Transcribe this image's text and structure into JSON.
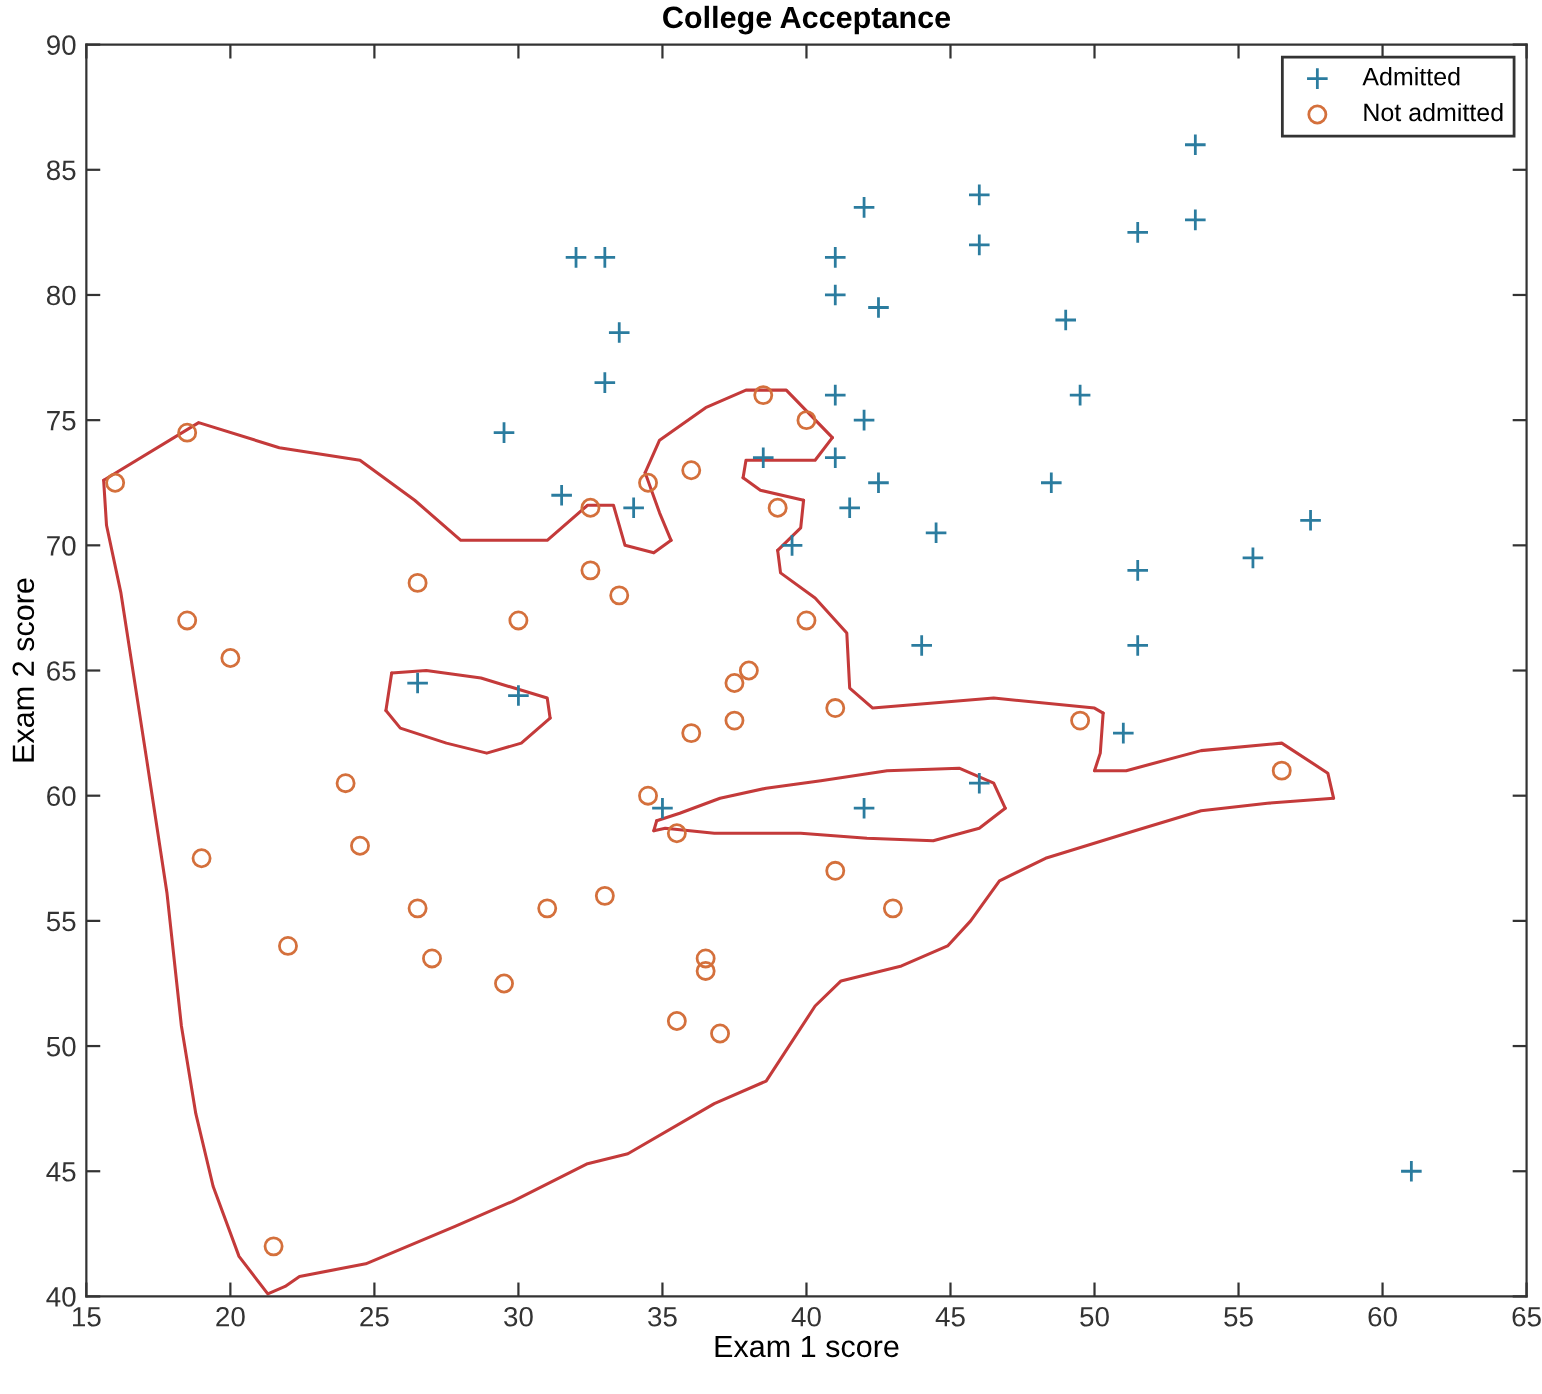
{
  "chart_data": {
    "type": "scatter",
    "title": "College Acceptance",
    "xlabel": "Exam 1 score",
    "ylabel": "Exam 2 score",
    "xlim": [
      15,
      65
    ],
    "ylim": [
      40,
      90
    ],
    "xticks": [
      15,
      20,
      25,
      30,
      35,
      40,
      45,
      50,
      55,
      60,
      65
    ],
    "yticks": [
      40,
      45,
      50,
      55,
      60,
      65,
      70,
      75,
      80,
      85,
      90
    ],
    "legend": "top right",
    "grid": false,
    "line_style": "solid",
    "series": [
      {
        "name": "Admitted",
        "marker": "cross",
        "color": "#2b7c9f",
        "x": [
          29.5,
          31.5,
          32,
          33,
          33.5,
          33,
          34,
          26.5,
          30,
          35,
          38.5,
          39.5,
          41,
          41,
          42,
          42.5,
          41,
          42,
          41,
          42.5,
          41.5,
          44.5,
          46,
          46,
          44,
          42,
          46,
          48.5,
          49,
          49.5,
          51.5,
          53.5,
          53.5,
          51.5,
          51.5,
          51,
          55.5,
          57.5,
          61
        ],
        "values": [
          74.5,
          72,
          81.5,
          81.5,
          78.5,
          76.5,
          71.5,
          64.5,
          64,
          59.5,
          73.5,
          70,
          81.5,
          80,
          83.5,
          79.5,
          76,
          75,
          73.5,
          72.5,
          71.5,
          70.5,
          84,
          82,
          66,
          59.5,
          60.5,
          72.5,
          79,
          76,
          82.5,
          86,
          83,
          69,
          66,
          62.5,
          69.5,
          71,
          45
        ]
      },
      {
        "name": "Not admitted",
        "marker": "circle",
        "color": "#d4703c",
        "x": [
          16,
          18.5,
          18.5,
          20,
          19,
          22,
          21.5,
          24,
          24.5,
          26.5,
          26.5,
          27,
          30,
          29.5,
          31,
          32.5,
          32.5,
          33.5,
          33,
          34.5,
          34.5,
          35.5,
          35.5,
          36,
          36,
          36.5,
          36.5,
          37,
          37.5,
          37.5,
          38,
          38.5,
          39,
          40,
          40,
          41,
          41,
          43,
          49.5,
          56.5
        ],
        "values": [
          72.5,
          74.5,
          67,
          65.5,
          57.5,
          54,
          42,
          60.5,
          58,
          68.5,
          55.5,
          53.5,
          67,
          52.5,
          55.5,
          71.5,
          69,
          68,
          56,
          72.5,
          60,
          58.5,
          51,
          73,
          62.5,
          53.5,
          53,
          50.5,
          64.5,
          63,
          65,
          76,
          71.5,
          75,
          67,
          63.5,
          57,
          55.5,
          63,
          61
        ]
      },
      {
        "type": "line",
        "marker": "none",
        "color": "#c43a3a",
        "x": [
          15.6,
          18.9,
          21.7,
          24.5,
          26.4,
          28.0,
          31.0,
          32.4,
          33.3,
          33.7,
          34.7,
          35.3
        ],
        "values": [
          72.6,
          74.9,
          73.9,
          73.4,
          71.8,
          70.2,
          70.2,
          71.6,
          71.6,
          70.0,
          69.7,
          70.2
        ]
      },
      {
        "type": "line",
        "marker": "none",
        "color": "#c43a3a",
        "x": [
          35.3,
          34.9,
          34.4
        ],
        "values": [
          70.2,
          71.3,
          72.9
        ]
      },
      {
        "type": "line",
        "marker": "none",
        "color": "#c43a3a",
        "x": [
          34.4,
          34.9,
          36.5,
          37.9,
          39.3,
          40.9
        ],
        "values": [
          72.9,
          74.2,
          75.5,
          76.2,
          76.2,
          74.3
        ]
      },
      {
        "type": "line",
        "marker": "none",
        "color": "#c43a3a",
        "x": [
          40.9,
          40.3,
          37.9,
          37.8
        ],
        "values": [
          74.3,
          73.4,
          73.4,
          72.7
        ]
      },
      {
        "type": "line",
        "marker": "none",
        "color": "#c43a3a",
        "x": [
          37.8,
          38.4,
          39.9
        ],
        "values": [
          72.7,
          72.2,
          71.8
        ]
      },
      {
        "type": "line",
        "marker": "none",
        "color": "#c43a3a",
        "x": [
          39.9,
          39.8,
          39.0
        ],
        "values": [
          71.8,
          70.7,
          69.8
        ]
      },
      {
        "type": "line",
        "marker": "none",
        "color": "#c43a3a",
        "x": [
          39.0,
          39.1,
          40.3,
          41.4,
          41.5,
          42.3,
          46.5,
          50.0,
          50.3
        ],
        "values": [
          69.8,
          68.9,
          67.9,
          66.5,
          64.3,
          63.5,
          63.9,
          63.5,
          63.3
        ]
      },
      {
        "type": "line",
        "marker": "none",
        "color": "#c43a3a",
        "x": [
          50.3,
          50.2,
          50.0
        ],
        "values": [
          63.3,
          61.7,
          61.0
        ]
      },
      {
        "type": "line",
        "marker": "none",
        "color": "#c43a3a",
        "x": [
          50.0,
          51.1,
          53.7,
          56.5,
          58.1,
          58.3
        ],
        "values": [
          61.0,
          61.0,
          61.8,
          62.1,
          60.9,
          59.9
        ]
      },
      {
        "type": "line",
        "marker": "none",
        "color": "#c43a3a",
        "x": [
          58.3,
          56.0,
          53.7,
          51.4,
          48.3,
          46.7,
          45.7,
          44.9,
          43.3,
          41.2,
          40.3,
          38.6,
          36.8,
          33.8,
          32.4,
          29.8,
          27.8,
          24.7,
          22.4,
          21.9,
          21.3,
          20.3,
          19.4,
          18.8,
          18.3,
          17.8,
          17.1,
          16.2,
          15.7,
          15.6
        ],
        "values": [
          59.9,
          59.7,
          59.4,
          58.6,
          57.5,
          56.6,
          55.0,
          54.0,
          53.2,
          52.6,
          51.6,
          48.6,
          47.7,
          45.7,
          45.3,
          43.8,
          42.8,
          41.3,
          40.8,
          40.4,
          40.1,
          41.6,
          44.4,
          47.3,
          50.8,
          56.1,
          61.4,
          68.1,
          70.8,
          72.6
        ]
      },
      {
        "type": "line",
        "marker": "none",
        "color": "#c43a3a",
        "x": [
          25.6,
          26.8,
          28.7,
          31.0,
          31.1
        ],
        "values": [
          64.9,
          65.0,
          64.7,
          63.9,
          63.1
        ]
      },
      {
        "type": "line",
        "marker": "none",
        "color": "#c43a3a",
        "x": [
          31.1,
          30.1,
          28.9,
          27.5,
          25.9,
          25.4
        ],
        "values": [
          63.1,
          62.1,
          61.7,
          62.1,
          62.7,
          63.4
        ]
      },
      {
        "type": "line",
        "marker": "none",
        "color": "#c43a3a",
        "x": [
          25.4,
          25.6
        ],
        "values": [
          63.4,
          64.9
        ]
      },
      {
        "type": "line",
        "marker": "none",
        "color": "#c43a3a",
        "x": [
          34.8,
          35.6,
          37.0,
          38.6,
          40.5,
          42.8,
          45.3,
          46.5,
          46.9
        ],
        "values": [
          59.0,
          59.3,
          59.9,
          60.3,
          60.6,
          61.0,
          61.1,
          60.5,
          59.5
        ]
      },
      {
        "type": "line",
        "marker": "none",
        "color": "#c43a3a",
        "x": [
          46.9,
          46.0,
          44.4,
          42.1,
          39.8,
          36.8,
          35.1,
          34.7
        ],
        "values": [
          59.5,
          58.7,
          58.2,
          58.3,
          58.5,
          58.5,
          58.7,
          58.6
        ]
      },
      {
        "type": "line",
        "marker": "none",
        "color": "#c43a3a",
        "x": [
          34.7,
          34.8
        ],
        "values": [
          58.6,
          59.0
        ]
      }
    ]
  }
}
